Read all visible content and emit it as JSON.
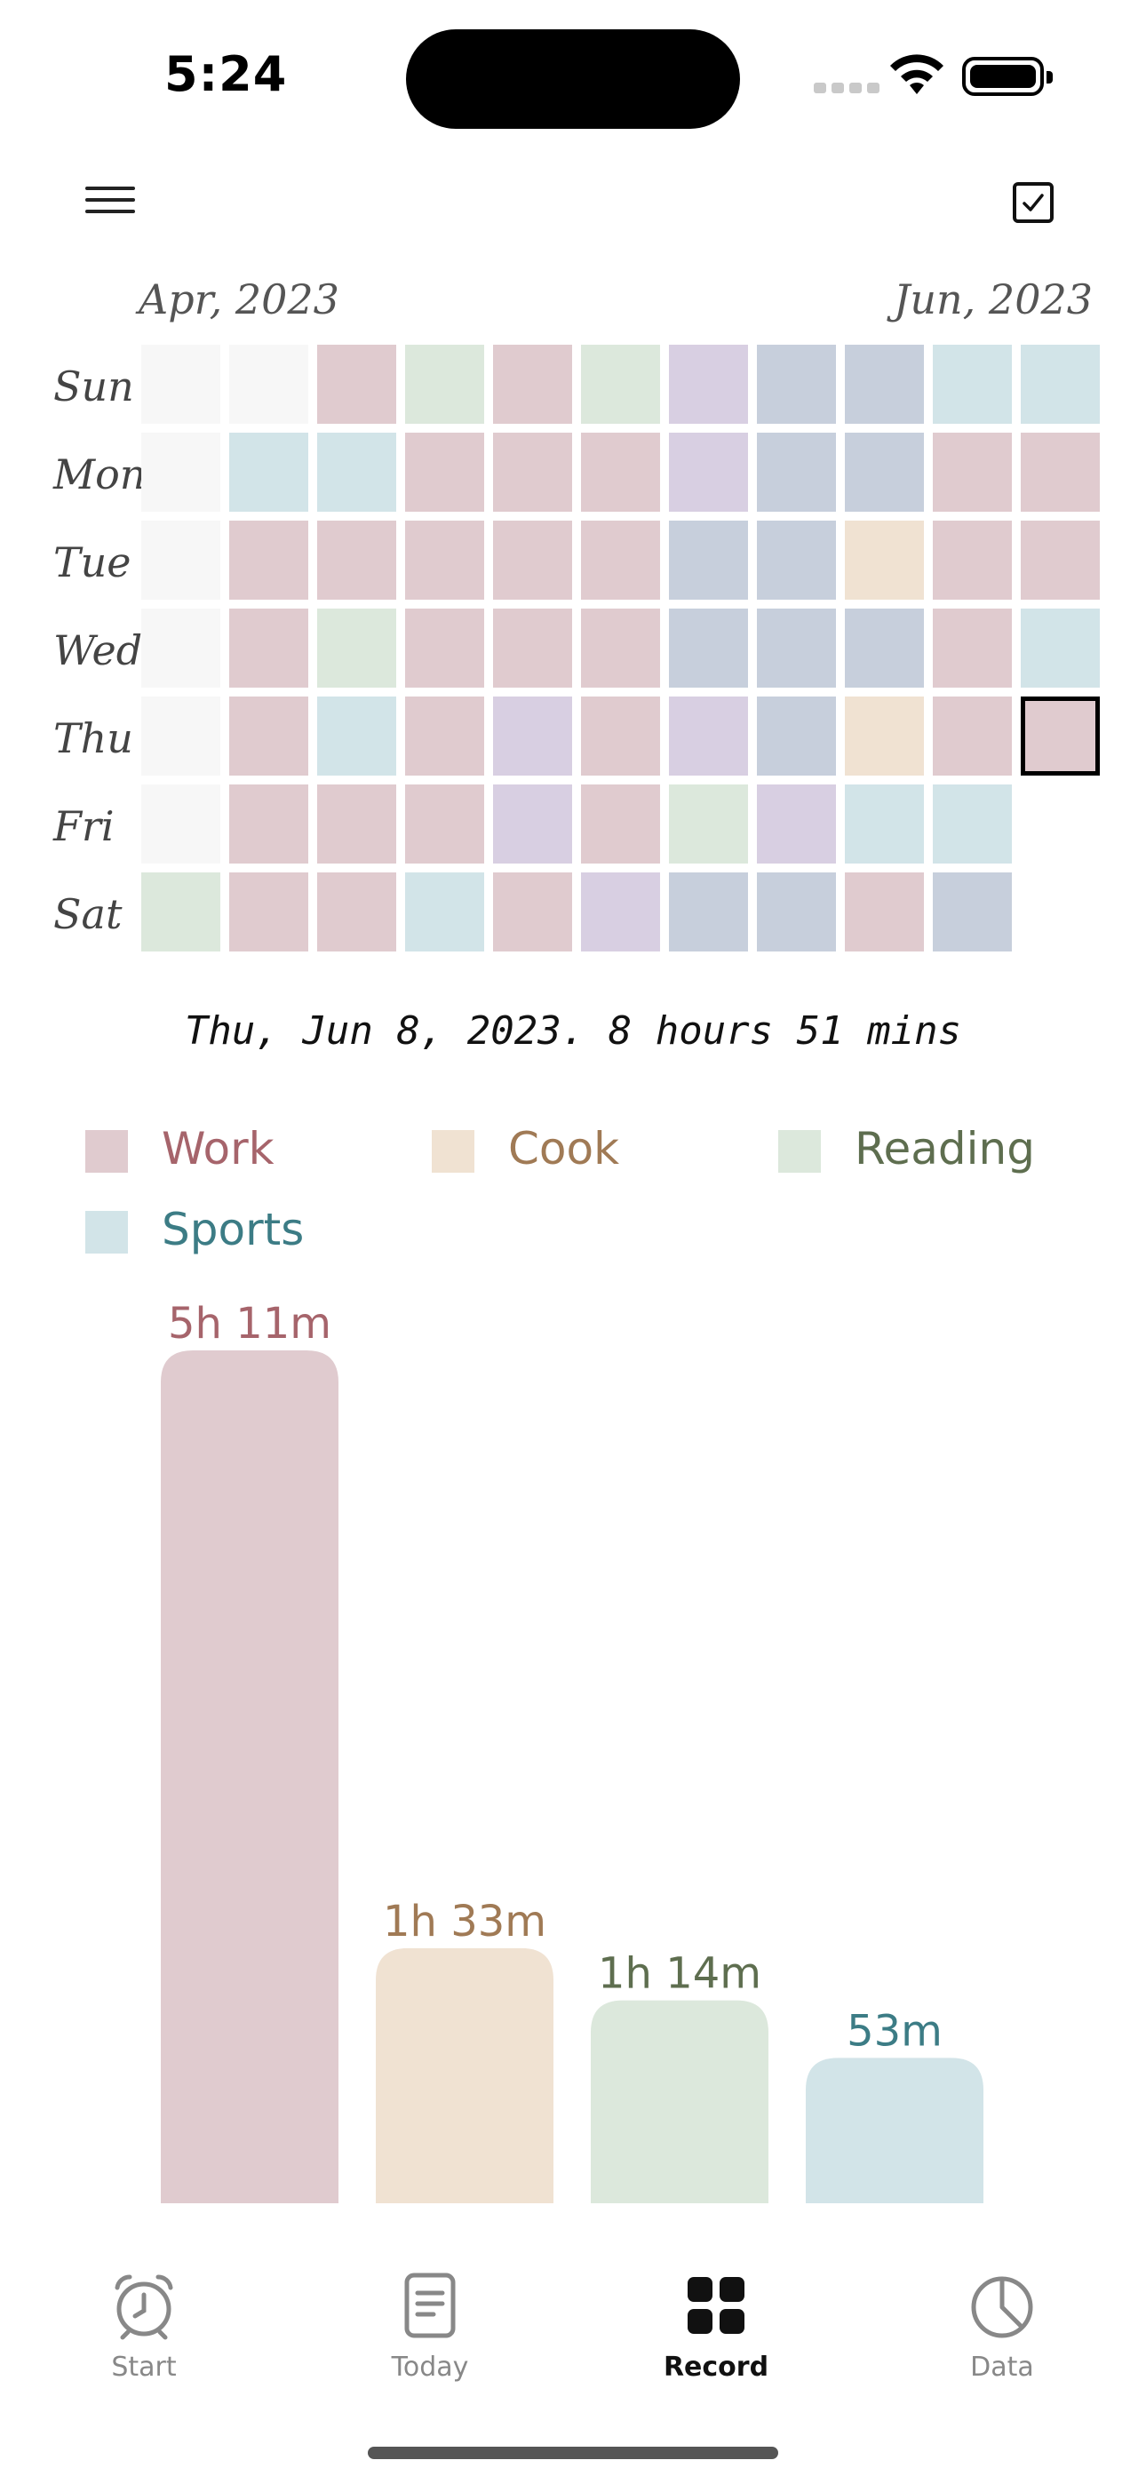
{
  "status_bar": {
    "time": "5:24"
  },
  "heatmap": {
    "month_start": "Apr, 2023",
    "month_end": "Jun, 2023",
    "day_labels": [
      "Sun",
      "Mon",
      "Tue",
      "Wed",
      "Thu",
      "Fri",
      "Sat"
    ],
    "colors": {
      "empty": "#f7f7f7",
      "work": "#e0cbcf",
      "cook": "#f0e2d2",
      "reading": "#dce8dc",
      "sports": "#d2e4e8",
      "purple": "#d8cfe2",
      "blue": "#c7cfdc"
    },
    "grid": [
      [
        "empty",
        "empty",
        "work",
        "reading",
        "work",
        "reading",
        "purple",
        "blue",
        "blue",
        "sports",
        "sports"
      ],
      [
        "empty",
        "sports",
        "sports",
        "work",
        "work",
        "work",
        "purple",
        "blue",
        "blue",
        "work",
        "work"
      ],
      [
        "empty",
        "work",
        "work",
        "work",
        "work",
        "work",
        "blue",
        "blue",
        "cook",
        "work",
        "work"
      ],
      [
        "empty",
        "work",
        "reading",
        "work",
        "work",
        "work",
        "blue",
        "blue",
        "blue",
        "work",
        "sports"
      ],
      [
        "empty",
        "work",
        "sports",
        "work",
        "purple",
        "work",
        "purple",
        "blue",
        "cook",
        "work",
        "work"
      ],
      [
        "empty",
        "work",
        "work",
        "work",
        "purple",
        "work",
        "reading",
        "purple",
        "sports",
        "sports",
        null
      ],
      [
        "reading",
        "work",
        "work",
        "sports",
        "work",
        "purple",
        "blue",
        "blue",
        "work",
        "blue",
        null
      ]
    ],
    "selected": {
      "row": 4,
      "col": 10
    }
  },
  "summary": "Thu, Jun 8, 2023. 8 hours 51 mins",
  "legend": [
    {
      "label": "Work",
      "swatch": "#e0cbcf",
      "text_color": "#a6646b"
    },
    {
      "label": "Cook",
      "swatch": "#f0e2d2",
      "text_color": "#a07a55"
    },
    {
      "label": "Reading",
      "swatch": "#dce8dc",
      "text_color": "#5e6e4f"
    },
    {
      "label": "Sports",
      "swatch": "#d2e4e8",
      "text_color": "#3c7c85"
    }
  ],
  "chart_data": {
    "type": "bar",
    "categories": [
      "Work",
      "Cook",
      "Reading",
      "Sports"
    ],
    "values_minutes": [
      311,
      93,
      74,
      53
    ],
    "data_labels": [
      "5h 11m",
      "1h 33m",
      "1h 14m",
      "53m"
    ],
    "colors": [
      "#e0cbcf",
      "#f0e2d2",
      "#dce8dc",
      "#d2e4e8"
    ],
    "label_colors": [
      "#a6646b",
      "#a07a55",
      "#5e6e4f",
      "#3c7c85"
    ]
  },
  "tabs": [
    {
      "label": "Start",
      "icon": "alarm-clock-icon"
    },
    {
      "label": "Today",
      "icon": "document-icon"
    },
    {
      "label": "Record",
      "icon": "grid-icon",
      "active": true
    },
    {
      "label": "Data",
      "icon": "pie-chart-icon"
    }
  ]
}
